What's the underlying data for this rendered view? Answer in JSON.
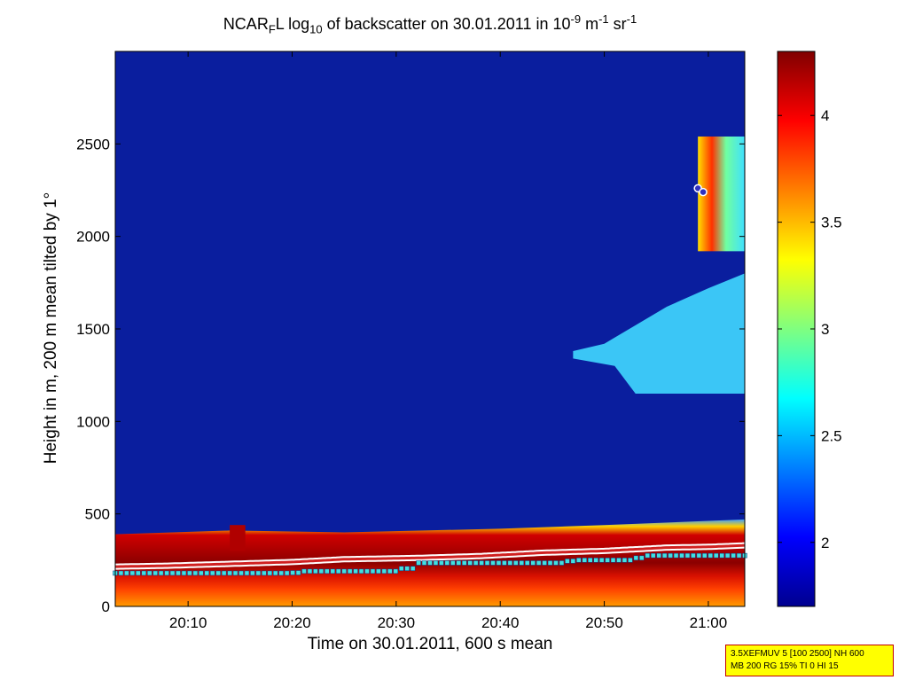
{
  "chart_data": {
    "type": "heatmap",
    "title": {
      "prefix": "NCAR",
      "sub1": "F",
      "mid": "L log",
      "sub2": "10",
      "mid2": " of backscatter on 30.01.2011 in 10",
      "sup1": "-9",
      "mid3": " m",
      "sup2": "-1",
      "mid4": " sr",
      "sup3": "-1"
    },
    "xlabel": "Time on 30.01.2011, 600 s mean",
    "ylabel": "Height in m, 200 m mean tilted by 1°",
    "x_range_minutes": [
      3,
      63.5
    ],
    "x_ticks": [
      {
        "value": 10,
        "label": "20:10"
      },
      {
        "value": 20,
        "label": "20:20"
      },
      {
        "value": 30,
        "label": "20:30"
      },
      {
        "value": 40,
        "label": "20:40"
      },
      {
        "value": 50,
        "label": "20:50"
      },
      {
        "value": 60,
        "label": "21:00"
      }
    ],
    "ylim": [
      0,
      3000
    ],
    "y_ticks": [
      0,
      500,
      1000,
      1500,
      2000,
      2500
    ],
    "colorbar": {
      "range": [
        1.7,
        4.3
      ],
      "ticks": [
        2,
        2.5,
        3,
        3.5,
        4
      ],
      "colormap": "jet"
    },
    "layers": {
      "boundary_layer_top_m": [
        [
          3,
          390
        ],
        [
          14,
          410
        ],
        [
          25,
          400
        ],
        [
          40,
          420
        ],
        [
          50,
          440
        ],
        [
          63.5,
          470
        ]
      ],
      "aerosol_layer_line_m": [
        [
          3,
          215
        ],
        [
          8,
          220
        ],
        [
          14,
          230
        ],
        [
          20,
          240
        ],
        [
          25,
          255
        ],
        [
          32,
          262
        ],
        [
          38,
          272
        ],
        [
          44,
          290
        ],
        [
          50,
          300
        ],
        [
          56,
          318
        ],
        [
          60,
          322
        ],
        [
          63.5,
          330
        ]
      ],
      "mixing_height_markers_m": [
        [
          3,
          180
        ],
        [
          20,
          182
        ],
        [
          21,
          190
        ],
        [
          30,
          205
        ],
        [
          32,
          235
        ],
        [
          46,
          245
        ],
        [
          47,
          250
        ],
        [
          53,
          262
        ],
        [
          54,
          275
        ],
        [
          63.5,
          285
        ]
      ],
      "cloud_base_m": [
        [
          59,
          2260
        ],
        [
          59.5,
          2240
        ]
      ]
    },
    "features": {
      "upper_layer_time_range_minutes": [
        47,
        63.5
      ],
      "upper_layer_height_range_m": [
        1150,
        1800
      ],
      "cloud_time_range_minutes": [
        59,
        63.5
      ],
      "cloud_height_range_m": [
        1920,
        2540
      ]
    },
    "colors": {
      "background": "#0a1e9e",
      "line": "#d02020",
      "markers": "#40e0e0"
    }
  },
  "infobox": {
    "line1": "3.5XEFMUV 5 [100 2500] NH 600",
    "line2": "MB 200 RG 15% TI 0 HI 15"
  }
}
